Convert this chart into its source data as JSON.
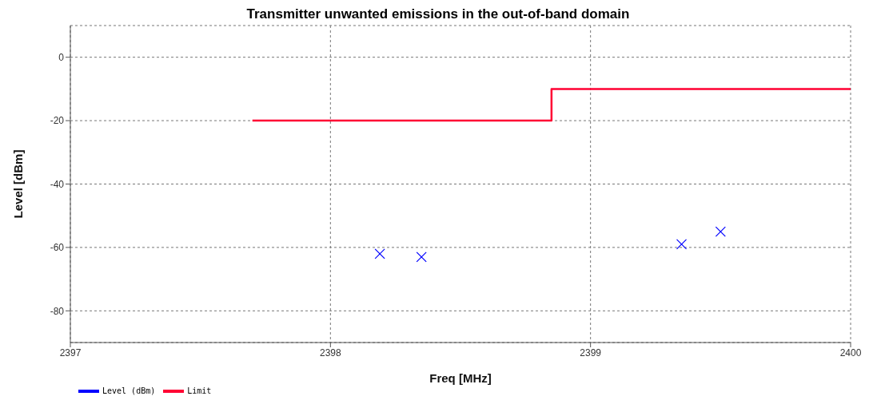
{
  "chart_data": {
    "type": "step",
    "title": "Transmitter unwanted emissions in the out-of-band domain",
    "xlabel": "Freq [MHz]",
    "ylabel": "Level [dBm]",
    "xlim": [
      2397,
      2400
    ],
    "xticks": [
      2397,
      2398,
      2399,
      2400
    ],
    "ylim": [
      -90,
      10
    ],
    "yticks": [
      -80,
      -60,
      -40,
      -20,
      0
    ],
    "grid": true,
    "legend": "bottom left",
    "series": [
      {
        "name": "Level (dBm)",
        "type": "scatter",
        "color": "#0000ff",
        "marker": "cross",
        "x": [
          2398.19,
          2398.35,
          2399.35,
          2399.5
        ],
        "values": [
          -62,
          -63,
          -59,
          -55
        ]
      },
      {
        "name": "Limit",
        "color": "#ff0033",
        "marker": "none",
        "x": [
          2397.7,
          2398.85,
          2400
        ],
        "values": [
          -20,
          -10,
          -10
        ]
      }
    ]
  }
}
